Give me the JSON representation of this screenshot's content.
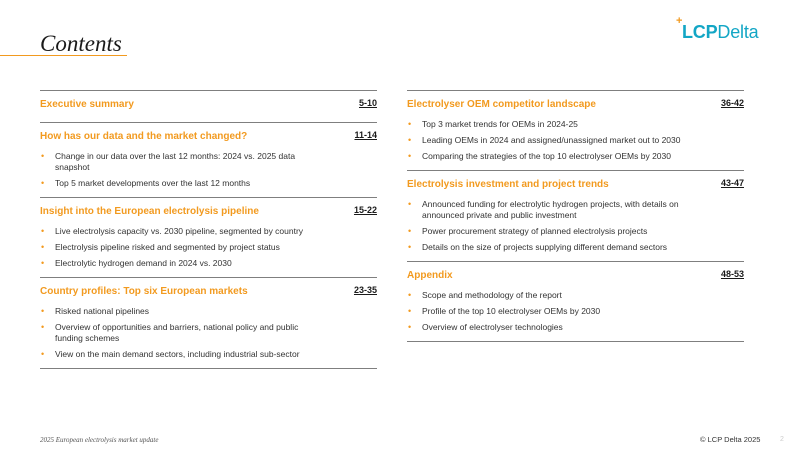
{
  "page": {
    "title": "Contents",
    "footer_left": "2025 European electrolysis market update",
    "footer_right": "© LCP Delta 2025",
    "page_number": "2"
  },
  "logo": {
    "plus": "+",
    "part1": "LCP",
    "part2": "Delta",
    "colors": {
      "text": "#13A6C5",
      "plus": "#F29A1F"
    }
  },
  "colors": {
    "accent": "#F29A1F",
    "rule": "#7f7f7f"
  },
  "left_sections": [
    {
      "title": "Executive summary",
      "pages": "5-10",
      "bullets": []
    },
    {
      "title": "How has our data and the market changed?",
      "pages": "11-14",
      "bullets": [
        "Change in our data over the last 12 months: 2024 vs. 2025 data snapshot",
        "Top 5 market developments over the last 12 months"
      ]
    },
    {
      "title": "Insight into the European electrolysis pipeline",
      "pages": "15-22",
      "bullets": [
        "Live electrolysis capacity vs. 2030 pipeline, segmented by country",
        "Electrolysis pipeline risked and segmented by project status",
        "Electrolytic hydrogen demand in 2024 vs. 2030"
      ]
    },
    {
      "title": "Country profiles: Top six European markets",
      "pages": "23-35",
      "bullets": [
        "Risked national pipelines",
        "Overview of opportunities and barriers, national policy and public funding schemes",
        "View on the main demand sectors, including industrial sub-sector"
      ]
    }
  ],
  "right_sections": [
    {
      "title": "Electrolyser OEM competitor landscape",
      "pages": "36-42",
      "bullets": [
        "Top 3 market trends for OEMs in 2024-25",
        "Leading OEMs in 2024 and assigned/unassigned market out to 2030",
        "Comparing the strategies of the top 10 electrolyser OEMs by 2030"
      ]
    },
    {
      "title": "Electrolysis investment and project trends",
      "pages": "43-47",
      "bullets": [
        "Announced funding for electrolytic hydrogen projects, with details on announced private and public investment",
        "Power procurement strategy of planned electrolysis projects",
        "Details on the size of projects supplying different demand sectors"
      ]
    },
    {
      "title": "Appendix",
      "pages": "48-53",
      "bullets": [
        "Scope and methodology of the report",
        "Profile of the top 10 electrolyser OEMs by 2030",
        "Overview of electrolyser technologies"
      ]
    }
  ]
}
